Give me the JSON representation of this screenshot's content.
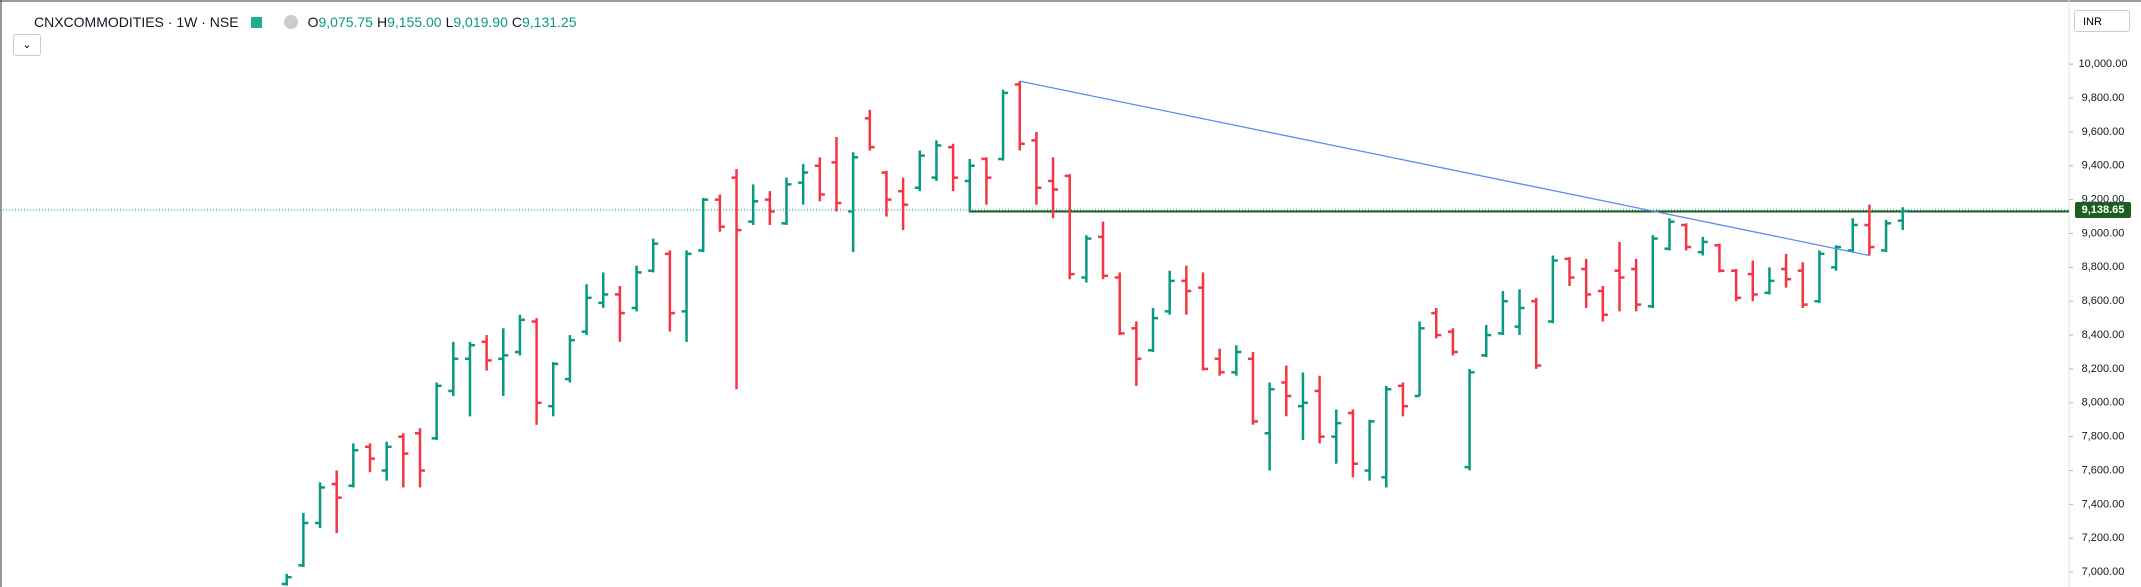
{
  "header": {
    "symbol": "CNXCOMMODITIES · 1W · NSE",
    "ohlc": [
      {
        "key": "O",
        "value": "9,075.75"
      },
      {
        "key": "H",
        "value": "9,155.00"
      },
      {
        "key": "L",
        "value": "9,019.90"
      },
      {
        "key": "C",
        "value": "9,131.25"
      }
    ],
    "currency": "INR"
  },
  "chart_data": {
    "type": "ohlc",
    "up_color": "#089981",
    "down_color": "#f23645",
    "open": [
      6930,
      7040,
      7290,
      7520,
      7510,
      7740,
      7600,
      7800,
      7820,
      7790,
      8070,
      8260,
      8360,
      8260,
      8300,
      8480,
      7980,
      8140,
      8420,
      8590,
      8640,
      8560,
      8780,
      8880,
      8540,
      8900,
      9200,
      9330,
      9070,
      9200,
      9060,
      9300,
      9400,
      9420,
      9130,
      9680,
      9360,
      9250,
      9270,
      9330,
      9510,
      9310,
      9440,
      9440,
      9880,
      9550,
      9310,
      9340,
      8740,
      8980,
      8740,
      8440,
      8310,
      8540,
      8720,
      8680,
      8260,
      8180,
      8260,
      7820,
      8120,
      7980,
      8070,
      7800,
      7940,
      7600,
      7560,
      8100,
      8040,
      8530,
      8420,
      7620,
      8280,
      8410,
      8450,
      8600,
      8480,
      8850,
      8790,
      8660,
      8780,
      8790,
      8570,
      8910,
      9050,
      8890,
      8930,
      8780,
      8760,
      8650,
      8790,
      8780,
      8600,
      8800,
      8900,
      9050,
      8900,
      9075.75
    ],
    "high": [
      6990,
      7350,
      7530,
      7600,
      7760,
      7760,
      7770,
      7820,
      7850,
      8120,
      8360,
      8360,
      8400,
      8440,
      8520,
      8500,
      8240,
      8400,
      8700,
      8770,
      8690,
      8810,
      8970,
      8900,
      8900,
      9210,
      9230,
      9380,
      9290,
      9250,
      9330,
      9410,
      9450,
      9570,
      9480,
      9730,
      9370,
      9330,
      9490,
      9550,
      9530,
      9440,
      9450,
      9850,
      9900,
      9600,
      9450,
      9350,
      8990,
      9070,
      8770,
      8480,
      8560,
      8780,
      8810,
      8770,
      8320,
      8340,
      8300,
      8120,
      8220,
      8180,
      8160,
      7960,
      7960,
      7900,
      8100,
      8120,
      8480,
      8560,
      8440,
      8200,
      8460,
      8660,
      8670,
      8620,
      8870,
      8860,
      8850,
      8690,
      8950,
      8850,
      8990,
      9090,
      9060,
      8980,
      8940,
      8790,
      8840,
      8800,
      8880,
      8830,
      8900,
      8930,
      9090,
      9170,
      9080,
      9155
    ],
    "low": [
      6920,
      7030,
      7260,
      7230,
      7500,
      7590,
      7540,
      7500,
      7500,
      7780,
      8040,
      7920,
      8190,
      8040,
      8280,
      7870,
      7920,
      8120,
      8400,
      8560,
      8360,
      8540,
      8770,
      8420,
      8360,
      8890,
      9010,
      8080,
      9050,
      9050,
      9050,
      9170,
      9190,
      9130,
      8890,
      9490,
      9100,
      9020,
      9250,
      9310,
      9250,
      9130,
      9170,
      9430,
      9490,
      9170,
      9090,
      8730,
      8710,
      8730,
      8400,
      8100,
      8300,
      8520,
      8520,
      8190,
      8160,
      8160,
      7870,
      7600,
      7920,
      7780,
      7760,
      7640,
      7560,
      7540,
      7500,
      7920,
      8040,
      8380,
      8280,
      7600,
      8270,
      8400,
      8400,
      8200,
      8470,
      8690,
      8560,
      8480,
      8540,
      8540,
      8560,
      8900,
      8900,
      8870,
      8770,
      8600,
      8600,
      8640,
      8680,
      8560,
      8590,
      8780,
      8890,
      8870,
      8890,
      9019.9
    ],
    "close": [
      6970,
      7290,
      7500,
      7440,
      7720,
      7670,
      7740,
      7700,
      7600,
      8100,
      8260,
      8340,
      8250,
      8280,
      8490,
      8000,
      8230,
      8370,
      8620,
      8640,
      8530,
      8770,
      8940,
      8530,
      8880,
      9200,
      9040,
      9020,
      9190,
      9130,
      9290,
      9360,
      9230,
      9180,
      9450,
      9510,
      9200,
      9170,
      9460,
      9520,
      9330,
      9400,
      9330,
      9830,
      9530,
      9270,
      9260,
      8760,
      8970,
      8750,
      8410,
      8260,
      8500,
      8720,
      8660,
      8200,
      8180,
      8300,
      7890,
      8080,
      8040,
      8000,
      7800,
      7880,
      7640,
      7890,
      8080,
      7980,
      8440,
      8400,
      8300,
      8180,
      8400,
      8600,
      8560,
      8220,
      8840,
      8740,
      8640,
      8520,
      8740,
      8580,
      8970,
      9070,
      8920,
      8950,
      8780,
      8620,
      8640,
      8720,
      8730,
      8580,
      8880,
      8920,
      9050,
      8920,
      9060,
      9131.25
    ],
    "ylim": [
      6912,
      10379
    ],
    "yticks": [
      {
        "value": 7000,
        "label": "7,000.00"
      },
      {
        "value": 7200,
        "label": "7,200.00"
      },
      {
        "value": 7400,
        "label": "7,400.00"
      },
      {
        "value": 7600,
        "label": "7,600.00"
      },
      {
        "value": 7800,
        "label": "7,800.00"
      },
      {
        "value": 8000,
        "label": "8,000.00"
      },
      {
        "value": 8200,
        "label": "8,200.00"
      },
      {
        "value": 8400,
        "label": "8,400.00"
      },
      {
        "value": 8600,
        "label": "8,600.00"
      },
      {
        "value": 8800,
        "label": "8,800.00"
      },
      {
        "value": 9000,
        "label": "9,000.00"
      },
      {
        "value": 9200,
        "label": "9,200.00"
      },
      {
        "value": 9400,
        "label": "9,400.00"
      },
      {
        "value": 9600,
        "label": "9,600.00"
      },
      {
        "value": 9800,
        "label": "9,800.00"
      },
      {
        "value": 10000,
        "label": "10,000.00"
      }
    ],
    "last_price": {
      "value": 9138.65,
      "label": "9,138.65"
    },
    "trend_line": {
      "values": [
        9900,
        8870
      ],
      "color": "#5b8def"
    },
    "horizontal_line": {
      "value": 9130,
      "color": "#1b5e20"
    }
  }
}
